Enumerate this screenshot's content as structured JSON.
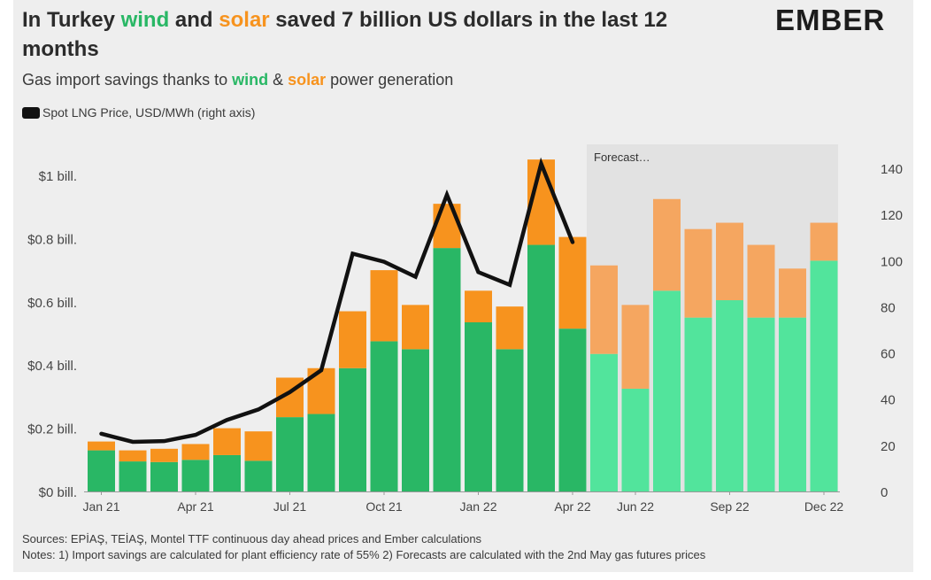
{
  "header": {
    "title_part1": "In Turkey ",
    "title_wind": "wind",
    "title_part2": " and ",
    "title_solar": "solar",
    "title_part3": " saved 7 billion US dollars in the last 12 months",
    "subtitle_part1": "Gas import savings thanks to ",
    "subtitle_wind": "wind",
    "subtitle_amp": " & ",
    "subtitle_solar": "solar",
    "subtitle_part2": " power generation",
    "legend_label": "Spot LNG Price, USD/MWh (right axis)",
    "logo_text": "EMBER"
  },
  "footer": {
    "sources": "Sources: EPİAŞ, TEİAŞ, Montel TTF continuous day ahead prices and Ember calculations",
    "notes": "Notes: 1) Import savings are calculated for plant efficiency rate of 55% 2) Forecasts are calculated with the 2nd May gas futures prices"
  },
  "chart_data": {
    "type": "bar",
    "stacked": true,
    "title": "In Turkey wind and solar saved 7 billion US dollars in the last 12 months",
    "months": [
      "Jan 21",
      "Feb 21",
      "Mar 21",
      "Apr 21",
      "May 21",
      "Jun 21",
      "Jul 21",
      "Aug 21",
      "Sep 21",
      "Oct 21",
      "Nov 21",
      "Dec 21",
      "Jan 22",
      "Feb 22",
      "Mar 22",
      "Apr 22",
      "May 22",
      "Jun 22",
      "Jul 22",
      "Aug 22",
      "Sep 22",
      "Oct 22",
      "Nov 22",
      "Dec 22"
    ],
    "x_tick_labels": [
      "Jan 21",
      "Apr 21",
      "Jul 21",
      "Oct 21",
      "Jan 22",
      "Apr 22",
      "Jun 22",
      "Sep 22",
      "Dec 22"
    ],
    "x_tick_months": [
      "Jan 21",
      "Apr 21",
      "Jul 21",
      "Oct 21",
      "Jan 22",
      "Apr 22",
      "Jun 22",
      "Sep 22",
      "Dec 22"
    ],
    "forecast_start": "May 22",
    "forecast_label": "Forecast...",
    "series": [
      {
        "name": "wind",
        "unit": "USD bn",
        "color": "#29b765",
        "forecast_color": "#52e49c",
        "values": [
          0.13,
          0.095,
          0.093,
          0.1,
          0.115,
          0.097,
          0.235,
          0.245,
          0.39,
          0.475,
          0.45,
          0.77,
          0.535,
          0.45,
          0.78,
          0.515,
          0.435,
          0.325,
          0.635,
          0.55,
          0.605,
          0.55,
          0.55,
          0.73
        ]
      },
      {
        "name": "solar",
        "unit": "USD bn",
        "color": "#f7931e",
        "forecast_color": "#f5a660",
        "values": [
          0.028,
          0.035,
          0.042,
          0.05,
          0.085,
          0.093,
          0.125,
          0.145,
          0.18,
          0.225,
          0.14,
          0.14,
          0.1,
          0.135,
          0.27,
          0.29,
          0.28,
          0.265,
          0.29,
          0.28,
          0.245,
          0.23,
          0.155,
          0.12
        ]
      },
      {
        "name": "Spot LNG Price, USD/MWh (right axis)",
        "axis": "right",
        "color": "#111111",
        "values": [
          25,
          21.5,
          21.8,
          24.5,
          31,
          35.5,
          43,
          52.5,
          103,
          99.5,
          93,
          128.5,
          95,
          89.5,
          142,
          108
        ]
      }
    ],
    "left_axis": {
      "ticks": [
        0,
        0.2,
        0.4,
        0.6,
        0.8,
        1.0
      ],
      "tick_labels": [
        "$0 bill.",
        "$0.2 bill.",
        "$0.4 bill.",
        "$0.6 bill.",
        "$0.8 bill.",
        "$1 bill."
      ],
      "ylim": [
        0,
        1.05
      ]
    },
    "right_axis": {
      "ticks": [
        0,
        20,
        40,
        60,
        80,
        100,
        120,
        140
      ],
      "tick_labels": [
        "0",
        "20",
        "40",
        "60",
        "80",
        "100",
        "120",
        "140"
      ],
      "ylim": [
        0,
        146
      ]
    }
  }
}
